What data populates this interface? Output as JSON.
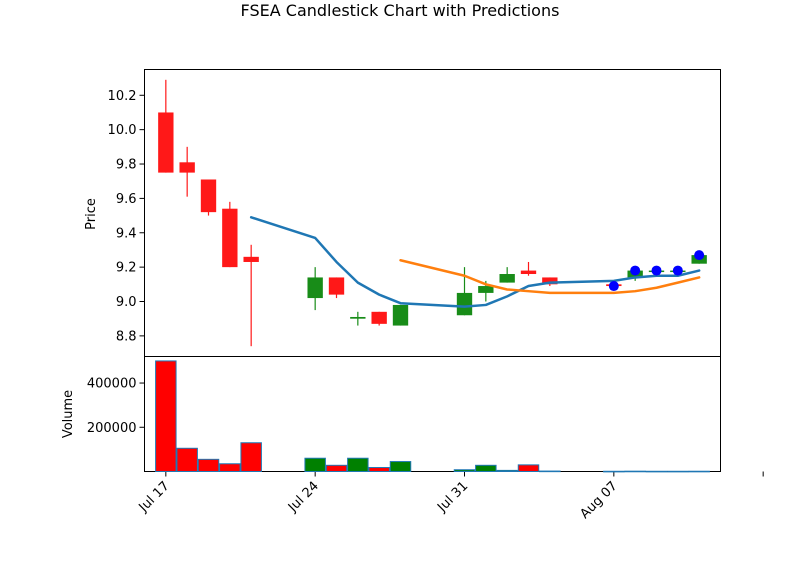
{
  "chart_data": {
    "type": "candlestick",
    "title": "FSEA Candlestick Chart with Predictions",
    "price_panel": {
      "ylabel": "Price",
      "ylim": [
        8.68,
        10.35
      ],
      "yticks": [
        "8.8",
        "9.0",
        "9.2",
        "9.4",
        "9.6",
        "9.8",
        "10.0",
        "10.2"
      ],
      "ytick_values": [
        8.8,
        9.0,
        9.2,
        9.4,
        9.6,
        9.8,
        10.0,
        10.2
      ]
    },
    "volume_panel": {
      "ylabel": "Volume",
      "ylim": [
        0,
        520000
      ],
      "yticks": [
        "200000",
        "400000"
      ],
      "ytick_values": [
        200000,
        400000
      ]
    },
    "x_axis": {
      "xlim": [
        "2023-07-16",
        "2023-08-12"
      ],
      "tick_labels": [
        "Jul 17",
        "Jul 24",
        "Jul 31",
        "Aug 07",
        ""
      ],
      "tick_dates": [
        "2023-07-17",
        "2023-07-24",
        "2023-07-31",
        "2023-08-07",
        "2023-08-14"
      ]
    },
    "candles": [
      {
        "date": "2023-07-17",
        "open": 10.1,
        "high": 10.29,
        "low": 9.75,
        "close": 9.75,
        "volume": 500000
      },
      {
        "date": "2023-07-18",
        "open": 9.81,
        "high": 9.9,
        "low": 9.61,
        "close": 9.75,
        "volume": 105000
      },
      {
        "date": "2023-07-19",
        "open": 9.71,
        "high": 9.71,
        "low": 9.5,
        "close": 9.52,
        "volume": 55000
      },
      {
        "date": "2023-07-20",
        "open": 9.54,
        "high": 9.58,
        "low": 9.2,
        "close": 9.2,
        "volume": 35000
      },
      {
        "date": "2023-07-21",
        "open": 9.26,
        "high": 9.33,
        "low": 8.74,
        "close": 9.23,
        "volume": 130000
      },
      {
        "date": "2023-07-24",
        "open": 9.02,
        "high": 9.2,
        "low": 8.95,
        "close": 9.14,
        "volume": 60000
      },
      {
        "date": "2023-07-25",
        "open": 9.14,
        "high": 9.14,
        "low": 9.02,
        "close": 9.04,
        "volume": 28000
      },
      {
        "date": "2023-07-26",
        "open": 8.9,
        "high": 8.94,
        "low": 8.86,
        "close": 8.91,
        "volume": 60000
      },
      {
        "date": "2023-07-27",
        "open": 8.94,
        "high": 8.94,
        "low": 8.86,
        "close": 8.87,
        "volume": 18000
      },
      {
        "date": "2023-07-28",
        "open": 8.86,
        "high": 8.98,
        "low": 8.86,
        "close": 8.98,
        "volume": 45000
      },
      {
        "date": "2023-07-31",
        "open": 8.92,
        "high": 9.2,
        "low": 8.92,
        "close": 9.05,
        "volume": 8000
      },
      {
        "date": "2023-08-01",
        "open": 9.05,
        "high": 9.12,
        "low": 9.0,
        "close": 9.09,
        "volume": 28000
      },
      {
        "date": "2023-08-02",
        "open": 9.11,
        "high": 9.2,
        "low": 9.11,
        "close": 9.16,
        "volume": 5000
      },
      {
        "date": "2023-08-03",
        "open": 9.18,
        "high": 9.23,
        "low": 9.15,
        "close": 9.16,
        "volume": 30000
      },
      {
        "date": "2023-08-04",
        "open": 9.14,
        "high": 9.14,
        "low": 9.09,
        "close": 9.1,
        "volume": 2000
      },
      {
        "date": "2023-08-07",
        "open": 9.1,
        "high": 9.1,
        "low": 9.08,
        "close": 9.09,
        "volume": 1000
      },
      {
        "date": "2023-08-08",
        "open": 9.14,
        "high": 9.18,
        "low": 9.12,
        "close": 9.18,
        "volume": 1500
      },
      {
        "date": "2023-08-09",
        "open": 9.18,
        "high": 9.18,
        "low": 9.17,
        "close": 9.18,
        "volume": 1000
      },
      {
        "date": "2023-08-10",
        "open": 9.18,
        "high": 9.18,
        "low": 9.17,
        "close": 9.18,
        "volume": 1000
      },
      {
        "date": "2023-08-11",
        "open": 9.22,
        "high": 9.28,
        "low": 9.22,
        "close": 9.27,
        "volume": 1200
      }
    ],
    "prediction_markers": [
      {
        "date": "2023-08-07",
        "value": 9.09
      },
      {
        "date": "2023-08-08",
        "value": 9.18
      },
      {
        "date": "2023-08-09",
        "value": 9.18
      },
      {
        "date": "2023-08-10",
        "value": 9.18
      },
      {
        "date": "2023-08-11",
        "value": 9.27
      }
    ],
    "lines": [
      {
        "color": "#1f77b4",
        "points": [
          [
            "2023-07-21",
            9.49
          ],
          [
            "2023-07-24",
            9.37
          ],
          [
            "2023-07-25",
            9.23
          ],
          [
            "2023-07-26",
            9.11
          ],
          [
            "2023-07-27",
            9.04
          ],
          [
            "2023-07-28",
            8.99
          ],
          [
            "2023-07-31",
            8.97
          ],
          [
            "2023-08-01",
            8.98
          ],
          [
            "2023-08-02",
            9.03
          ],
          [
            "2023-08-03",
            9.09
          ],
          [
            "2023-08-04",
            9.11
          ],
          [
            "2023-08-07",
            9.12
          ],
          [
            "2023-08-08",
            9.14
          ],
          [
            "2023-08-09",
            9.15
          ],
          [
            "2023-08-10",
            9.15
          ],
          [
            "2023-08-11",
            9.18
          ]
        ]
      },
      {
        "color": "#ff7f0e",
        "points": [
          [
            "2023-07-28",
            9.24
          ],
          [
            "2023-07-31",
            9.15
          ],
          [
            "2023-08-01",
            9.1
          ],
          [
            "2023-08-02",
            9.07
          ],
          [
            "2023-08-03",
            9.06
          ],
          [
            "2023-08-04",
            9.05
          ],
          [
            "2023-08-07",
            9.05
          ],
          [
            "2023-08-08",
            9.06
          ],
          [
            "2023-08-09",
            9.08
          ],
          [
            "2023-08-10",
            9.11
          ],
          [
            "2023-08-11",
            9.14
          ]
        ]
      }
    ],
    "colors": {
      "up": "#008000",
      "down": "#ff0000",
      "candle_alpha": 0.9,
      "marker": "#0000ff",
      "bar_edge": "#1f77b4"
    }
  }
}
